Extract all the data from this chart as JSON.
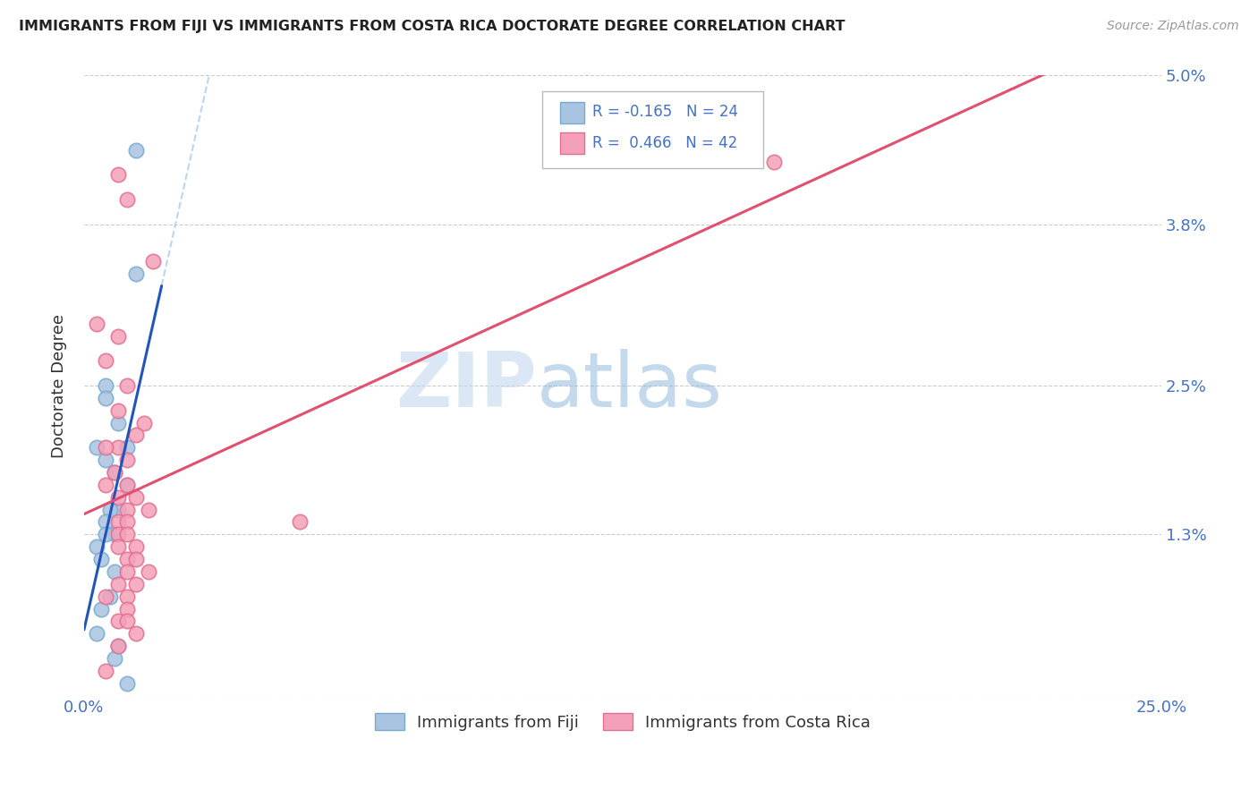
{
  "title": "IMMIGRANTS FROM FIJI VS IMMIGRANTS FROM COSTA RICA DOCTORATE DEGREE CORRELATION CHART",
  "source": "Source: ZipAtlas.com",
  "ylabel": "Doctorate Degree",
  "xlim": [
    0.0,
    0.25
  ],
  "ylim": [
    0.0,
    0.05
  ],
  "xticks": [
    0.0,
    0.05,
    0.1,
    0.15,
    0.2,
    0.25
  ],
  "xticklabels": [
    "0.0%",
    "",
    "",
    "",
    "",
    "25.0%"
  ],
  "yticks": [
    0.0,
    0.013,
    0.025,
    0.038,
    0.05
  ],
  "yticklabels": [
    "",
    "1.3%",
    "2.5%",
    "3.8%",
    "5.0%"
  ],
  "fiji_color": "#a8c4e0",
  "fiji_color_dark": "#7aaad0",
  "costa_rica_color": "#f4a0b8",
  "costa_rica_color_dark": "#e07090",
  "fiji_R": "-0.165",
  "fiji_N": "24",
  "costa_rica_R": "0.466",
  "costa_rica_N": "42",
  "legend_label_fiji": "Immigrants from Fiji",
  "legend_label_cr": "Immigrants from Costa Rica",
  "watermark_zip": "ZIP",
  "watermark_atlas": "atlas",
  "title_color": "#222222",
  "axis_color": "#333333",
  "grid_color": "#cccccc",
  "tick_color": "#4472c4",
  "background_color": "#ffffff",
  "fiji_line_color": "#2255bb",
  "cr_line_color": "#e05070",
  "dash_line_color": "#aaccee",
  "fiji_x": [
    0.012,
    0.012,
    0.005,
    0.005,
    0.008,
    0.01,
    0.003,
    0.005,
    0.007,
    0.01,
    0.008,
    0.006,
    0.005,
    0.007,
    0.005,
    0.003,
    0.004,
    0.007,
    0.006,
    0.004,
    0.003,
    0.008,
    0.007,
    0.01
  ],
  "fiji_y": [
    0.044,
    0.034,
    0.025,
    0.024,
    0.022,
    0.02,
    0.02,
    0.019,
    0.018,
    0.017,
    0.015,
    0.015,
    0.014,
    0.013,
    0.013,
    0.012,
    0.011,
    0.01,
    0.008,
    0.007,
    0.005,
    0.004,
    0.003,
    0.001
  ],
  "cr_x": [
    0.008,
    0.01,
    0.016,
    0.003,
    0.16,
    0.008,
    0.005,
    0.01,
    0.008,
    0.014,
    0.012,
    0.008,
    0.005,
    0.01,
    0.007,
    0.005,
    0.01,
    0.012,
    0.008,
    0.015,
    0.01,
    0.008,
    0.05,
    0.01,
    0.008,
    0.01,
    0.012,
    0.008,
    0.01,
    0.012,
    0.015,
    0.01,
    0.008,
    0.012,
    0.01,
    0.005,
    0.01,
    0.008,
    0.01,
    0.012,
    0.008,
    0.005
  ],
  "cr_y": [
    0.042,
    0.04,
    0.035,
    0.03,
    0.043,
    0.029,
    0.027,
    0.025,
    0.023,
    0.022,
    0.021,
    0.02,
    0.02,
    0.019,
    0.018,
    0.017,
    0.017,
    0.016,
    0.016,
    0.015,
    0.015,
    0.014,
    0.014,
    0.014,
    0.013,
    0.013,
    0.012,
    0.012,
    0.011,
    0.011,
    0.01,
    0.01,
    0.009,
    0.009,
    0.008,
    0.008,
    0.007,
    0.006,
    0.006,
    0.005,
    0.004,
    0.002
  ]
}
